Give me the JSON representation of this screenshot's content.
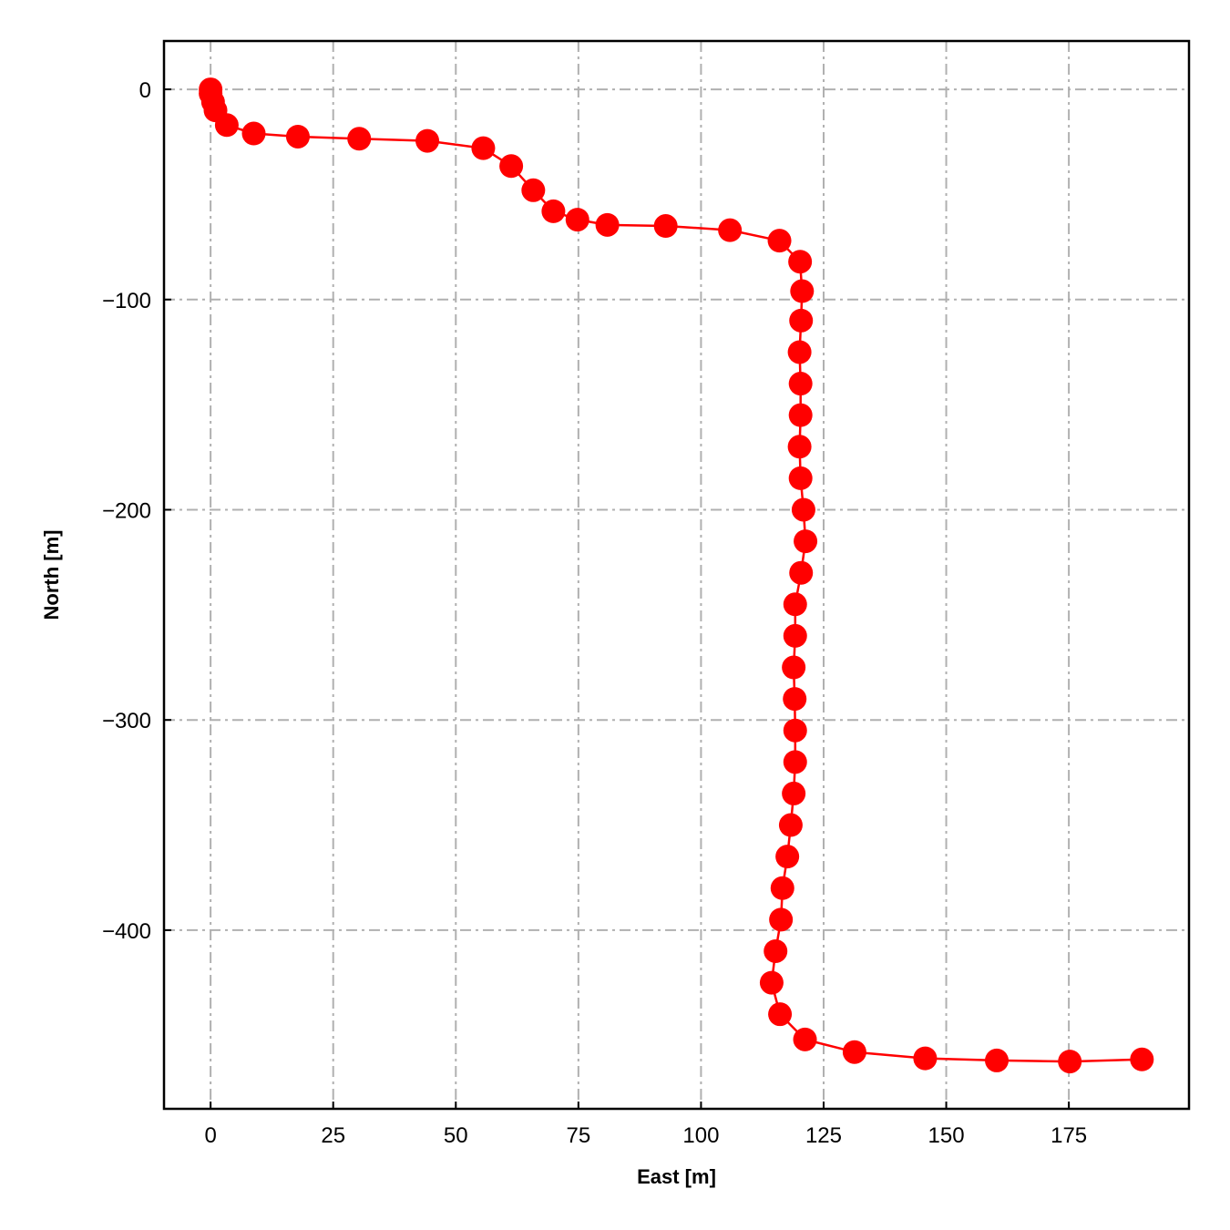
{
  "chart_data": {
    "type": "line",
    "title": "",
    "xlabel": "East [m]",
    "ylabel": "North [m]",
    "xlim": [
      -9.5,
      199.5
    ],
    "ylim": [
      -485,
      23
    ],
    "xticks": [
      0,
      25,
      50,
      75,
      100,
      125,
      150,
      175
    ],
    "yticks": [
      0,
      -100,
      -200,
      -300,
      -400
    ],
    "xtick_labels": [
      "0",
      "25",
      "50",
      "75",
      "100",
      "125",
      "150",
      "175"
    ],
    "ytick_labels": [
      "0",
      "−100",
      "−200",
      "−300",
      "−400"
    ],
    "grid": true,
    "legend": "none",
    "series": [
      {
        "color": "#ff0000",
        "marker": "circle",
        "x": [
          0,
          0,
          0.5,
          1,
          3.3,
          8.8,
          17.8,
          30.3,
          44.2,
          55.6,
          61.3,
          65.8,
          69.9,
          74.8,
          80.9,
          92.8,
          105.9,
          116,
          120.2,
          120.6,
          120.4,
          120.1,
          120.3,
          120.3,
          120.1,
          120.3,
          120.9,
          121.3,
          120.4,
          119.2,
          119.2,
          118.9,
          119.1,
          119.2,
          119.2,
          118.9,
          118.3,
          117.6,
          116.6,
          116.3,
          115.2,
          114.4,
          116.1,
          121.2,
          131.3,
          145.7,
          160.3,
          175.2,
          189.9
        ],
        "y": [
          0,
          -2,
          -6,
          -10,
          -17,
          -21,
          -22.5,
          -23.5,
          -24.5,
          -28,
          -36.5,
          -48,
          -58,
          -62,
          -64.5,
          -65,
          -67,
          -72,
          -82,
          -96,
          -110,
          -125,
          -140,
          -155,
          -170,
          -185,
          -200,
          -215,
          -230,
          -245,
          -260,
          -275,
          -290,
          -305,
          -320,
          -335,
          -350,
          -365,
          -380,
          -395,
          -410,
          -425,
          -440,
          -452,
          -458,
          -461,
          -462,
          -462.5,
          -461.5
        ]
      }
    ]
  }
}
